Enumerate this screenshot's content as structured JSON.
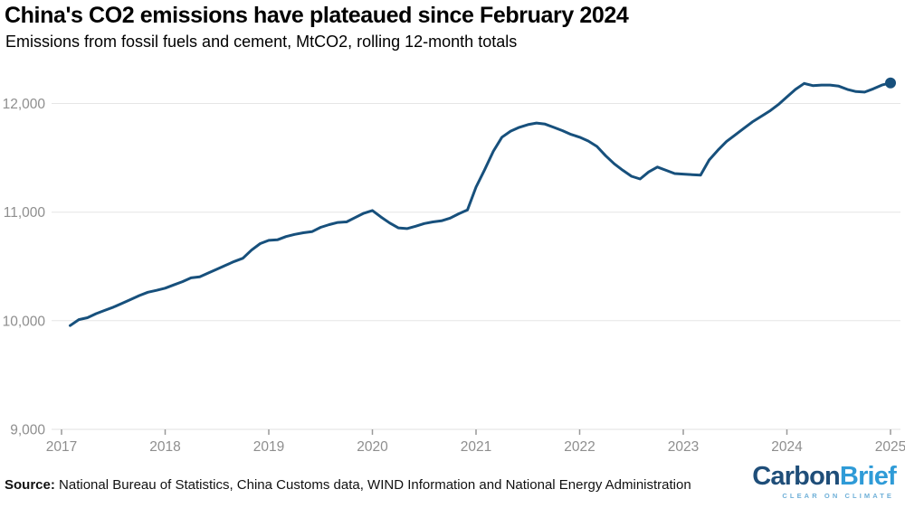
{
  "header": {
    "title": "China's CO2 emissions have plateaued since February 2024",
    "subtitle": "Emissions from fossil fuels and cement, MtCO2, rolling 12-month totals"
  },
  "footer": {
    "source_label": "Source:",
    "source_text": "National Bureau of Statistics, China Customs data, WIND Information and National Energy Administration",
    "logo": {
      "part1": "Carbon",
      "part2": "Brief",
      "tagline": "CLEAR ON CLIMATE"
    }
  },
  "colors": {
    "line": "#17507c",
    "end_dot": "#17507c",
    "grid": "#e6e6e6",
    "axis_line": "#e2e2e2",
    "tick": "#999999",
    "axis_label": "#8e8e8e",
    "logo_dark": "#1f4e79",
    "logo_light": "#2f9bd7",
    "logo_tagline": "#6fb0d8"
  },
  "chart_data": {
    "type": "line",
    "title": "China's CO2 emissions have plateaued since February 2024",
    "subtitle": "Emissions from fossil fuels and cement, MtCO2, rolling 12-month totals",
    "unit": "MtCO2",
    "series_name": "China CO2 emissions from fossil fuels and cement, rolling 12-month total",
    "start_month": "2017-02",
    "end_month": "2025-01",
    "frequency": "monthly",
    "x_tick_labels": [
      "2017",
      "2018",
      "2019",
      "2020",
      "2021",
      "2022",
      "2023",
      "2024",
      "2025"
    ],
    "y_ticks": [
      9000,
      10000,
      11000,
      12000
    ],
    "y_tick_labels": [
      "9,000",
      "10,000",
      "11,000",
      "12,000"
    ],
    "ylim": [
      9000,
      12400
    ],
    "grid": "horizontal-only",
    "legend": "none",
    "end_dot": true,
    "annotations": {
      "start_value": 9955,
      "covid_peak_2020_01": 11015,
      "covid_trough_2020_05": 10848,
      "peak_2021_08": 11820,
      "trough_2022_08": 11305,
      "plateau_peak_2024_03": 12185,
      "latest_2025_01": 12190
    },
    "values": [
      9955,
      10010,
      10028,
      10065,
      10095,
      10125,
      10160,
      10195,
      10232,
      10262,
      10280,
      10300,
      10330,
      10360,
      10395,
      10405,
      10440,
      10475,
      10510,
      10545,
      10575,
      10650,
      10710,
      10740,
      10745,
      10775,
      10795,
      10810,
      10820,
      10860,
      10885,
      10905,
      10910,
      10950,
      10990,
      11015,
      10955,
      10900,
      10855,
      10848,
      10870,
      10895,
      10910,
      10920,
      10945,
      10985,
      11020,
      11230,
      11390,
      11560,
      11690,
      11745,
      11780,
      11805,
      11820,
      11810,
      11780,
      11750,
      11715,
      11690,
      11655,
      11605,
      11520,
      11445,
      11385,
      11330,
      11305,
      11370,
      11415,
      11385,
      11355,
      11350,
      11345,
      11340,
      11480,
      11570,
      11650,
      11710,
      11770,
      11830,
      11880,
      11930,
      11990,
      12060,
      12130,
      12185,
      12165,
      12170,
      12170,
      12160,
      12130,
      12110,
      12105,
      12135,
      12170,
      12190
    ]
  }
}
